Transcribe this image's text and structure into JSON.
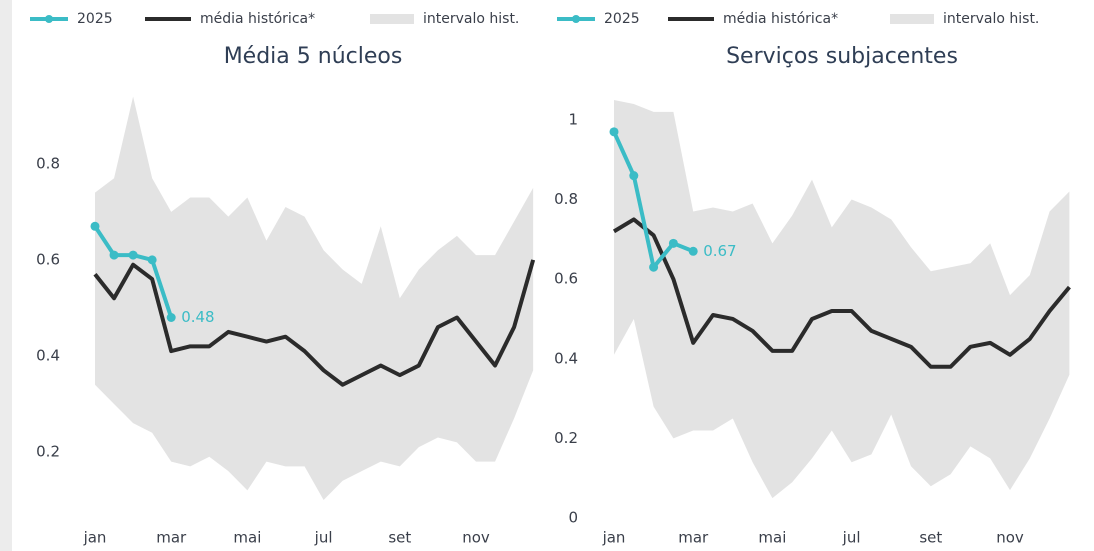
{
  "chart_data": [
    {
      "type": "line",
      "title": "Média 5 núcleos",
      "categories": [
        "jan",
        null,
        null,
        null,
        "mar",
        null,
        null,
        null,
        "mai",
        null,
        null,
        null,
        "jul",
        null,
        null,
        null,
        "set",
        null,
        null,
        null,
        "nov",
        null,
        null,
        null
      ],
      "series": [
        {
          "name": "2025",
          "color": "#3bbcc6",
          "values": [
            0.67,
            0.61,
            0.61,
            0.6,
            0.48,
            null,
            null,
            null,
            null,
            null,
            null,
            null,
            null,
            null,
            null,
            null,
            null,
            null,
            null,
            null,
            null,
            null,
            null,
            null
          ]
        },
        {
          "name": "média histórica*",
          "color": "#2b2b2b",
          "values": [
            0.57,
            0.52,
            0.59,
            0.56,
            0.41,
            0.42,
            0.42,
            0.45,
            0.44,
            0.43,
            0.44,
            0.41,
            0.37,
            0.34,
            0.36,
            0.38,
            0.36,
            0.38,
            0.46,
            0.48,
            0.43,
            0.38,
            0.46,
            0.6
          ]
        },
        {
          "name": "intervalo hist.",
          "color": "#e3e3e3",
          "upper": [
            0.74,
            0.77,
            0.94,
            0.77,
            0.7,
            0.73,
            0.73,
            0.69,
            0.73,
            0.64,
            0.71,
            0.69,
            0.62,
            0.58,
            0.55,
            0.67,
            0.52,
            0.58,
            0.62,
            0.65,
            0.61,
            0.61,
            0.68,
            0.75
          ],
          "lower": [
            0.34,
            0.3,
            0.26,
            0.24,
            0.18,
            0.17,
            0.19,
            0.16,
            0.12,
            0.18,
            0.17,
            0.17,
            0.1,
            0.14,
            0.16,
            0.18,
            0.17,
            0.21,
            0.23,
            0.22,
            0.18,
            0.18,
            0.27,
            0.37
          ]
        }
      ],
      "ylim": [
        0.05,
        0.96
      ],
      "yticks": [
        0.2,
        0.4,
        0.6,
        0.8
      ]
    },
    {
      "type": "line",
      "title": "Serviços subjacentes",
      "categories": [
        "jan",
        null,
        null,
        null,
        "mar",
        null,
        null,
        null,
        "mai",
        null,
        null,
        null,
        "jul",
        null,
        null,
        null,
        "set",
        null,
        null,
        null,
        "nov",
        null,
        null,
        null
      ],
      "series": [
        {
          "name": "2025",
          "color": "#3bbcc6",
          "values": [
            0.97,
            0.86,
            0.63,
            0.69,
            0.67,
            null,
            null,
            null,
            null,
            null,
            null,
            null,
            null,
            null,
            null,
            null,
            null,
            null,
            null,
            null,
            null,
            null,
            null,
            null
          ]
        },
        {
          "name": "média histórica*",
          "color": "#2b2b2b",
          "values": [
            0.72,
            0.75,
            0.71,
            0.6,
            0.44,
            0.51,
            0.5,
            0.47,
            0.42,
            0.42,
            0.5,
            0.52,
            0.52,
            0.47,
            0.45,
            0.43,
            0.38,
            0.38,
            0.43,
            0.44,
            0.41,
            0.45,
            0.52,
            0.58
          ]
        },
        {
          "name": "intervalo hist.",
          "color": "#e3e3e3",
          "upper": [
            1.05,
            1.04,
            1.02,
            1.02,
            0.77,
            0.78,
            0.77,
            0.79,
            0.69,
            0.76,
            0.85,
            0.73,
            0.8,
            0.78,
            0.75,
            0.68,
            0.62,
            0.63,
            0.64,
            0.69,
            0.56,
            0.61,
            0.77,
            0.82
          ],
          "lower": [
            0.41,
            0.5,
            0.28,
            0.2,
            0.22,
            0.22,
            0.25,
            0.14,
            0.05,
            0.09,
            0.15,
            0.22,
            0.14,
            0.16,
            0.26,
            0.13,
            0.08,
            0.11,
            0.18,
            0.15,
            0.07,
            0.15,
            0.25,
            0.36
          ]
        }
      ],
      "ylim": [
        -0.03,
        1.06
      ],
      "yticks": [
        0,
        0.2,
        0.4,
        0.6,
        0.8,
        1
      ]
    }
  ]
}
